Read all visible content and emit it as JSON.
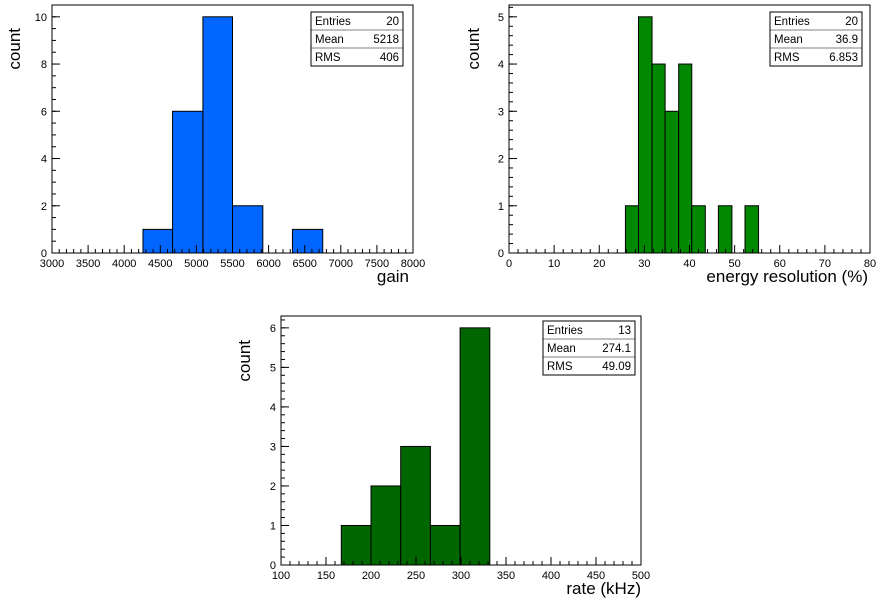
{
  "colors": {
    "blue": "#0066ff",
    "green": "#008800",
    "darkgreen": "#006600"
  },
  "chart_data": [
    {
      "type": "bar",
      "name": "gain",
      "xlabel": "gain",
      "ylabel": "count",
      "xlim": [
        3000,
        8000
      ],
      "ylim": [
        0,
        10.5
      ],
      "xticks": [
        3000,
        3500,
        4000,
        4500,
        5000,
        5500,
        6000,
        6500,
        7000,
        7500,
        8000
      ],
      "yticks": [
        0,
        2,
        4,
        6,
        8,
        10
      ],
      "bins": [
        {
          "lo": 4260,
          "hi": 4670,
          "count": 1
        },
        {
          "lo": 4670,
          "hi": 5090,
          "count": 6
        },
        {
          "lo": 5090,
          "hi": 5500,
          "count": 10
        },
        {
          "lo": 5500,
          "hi": 5920,
          "count": 2
        },
        {
          "lo": 6330,
          "hi": 6750,
          "count": 1
        }
      ],
      "color": "#0066ff",
      "stats": {
        "entries_label": "Entries",
        "entries": "20",
        "mean_label": "Mean",
        "mean": "5218",
        "rms_label": "RMS",
        "rms": "406"
      }
    },
    {
      "type": "bar",
      "name": "energy-resolution",
      "xlabel": "energy resolution (%)",
      "ylabel": "count",
      "xlim": [
        0,
        80
      ],
      "ylim": [
        0,
        5.25
      ],
      "xticks": [
        0,
        10,
        20,
        30,
        40,
        50,
        60,
        70,
        80
      ],
      "yticks": [
        0,
        1,
        2,
        3,
        4,
        5
      ],
      "bins": [
        {
          "lo": 25.8,
          "hi": 28.7,
          "count": 1
        },
        {
          "lo": 28.7,
          "hi": 31.7,
          "count": 5
        },
        {
          "lo": 31.7,
          "hi": 34.6,
          "count": 4
        },
        {
          "lo": 34.6,
          "hi": 37.6,
          "count": 3
        },
        {
          "lo": 37.6,
          "hi": 40.5,
          "count": 4
        },
        {
          "lo": 40.5,
          "hi": 43.5,
          "count": 1
        },
        {
          "lo": 46.4,
          "hi": 49.4,
          "count": 1
        },
        {
          "lo": 52.3,
          "hi": 55.3,
          "count": 1
        }
      ],
      "color": "#008800",
      "stats": {
        "entries_label": "Entries",
        "entries": "20",
        "mean_label": "Mean",
        "mean": "36.9",
        "rms_label": "RMS",
        "rms": "6.853"
      }
    },
    {
      "type": "bar",
      "name": "rate",
      "xlabel": "rate (kHz)",
      "ylabel": "count",
      "xlim": [
        100,
        500
      ],
      "ylim": [
        0,
        6.3
      ],
      "xticks": [
        100,
        150,
        200,
        250,
        300,
        350,
        400,
        450,
        500
      ],
      "yticks": [
        0,
        1,
        2,
        3,
        4,
        5,
        6
      ],
      "bins": [
        {
          "lo": 167,
          "hi": 200,
          "count": 1
        },
        {
          "lo": 200,
          "hi": 233,
          "count": 2
        },
        {
          "lo": 233,
          "hi": 266,
          "count": 3
        },
        {
          "lo": 266,
          "hi": 299,
          "count": 1
        },
        {
          "lo": 299,
          "hi": 332,
          "count": 6
        }
      ],
      "color": "#006600",
      "stats": {
        "entries_label": "Entries",
        "entries": "13",
        "mean_label": "Mean",
        "mean": "274.1",
        "rms_label": "RMS",
        "rms": "49.09"
      }
    }
  ]
}
